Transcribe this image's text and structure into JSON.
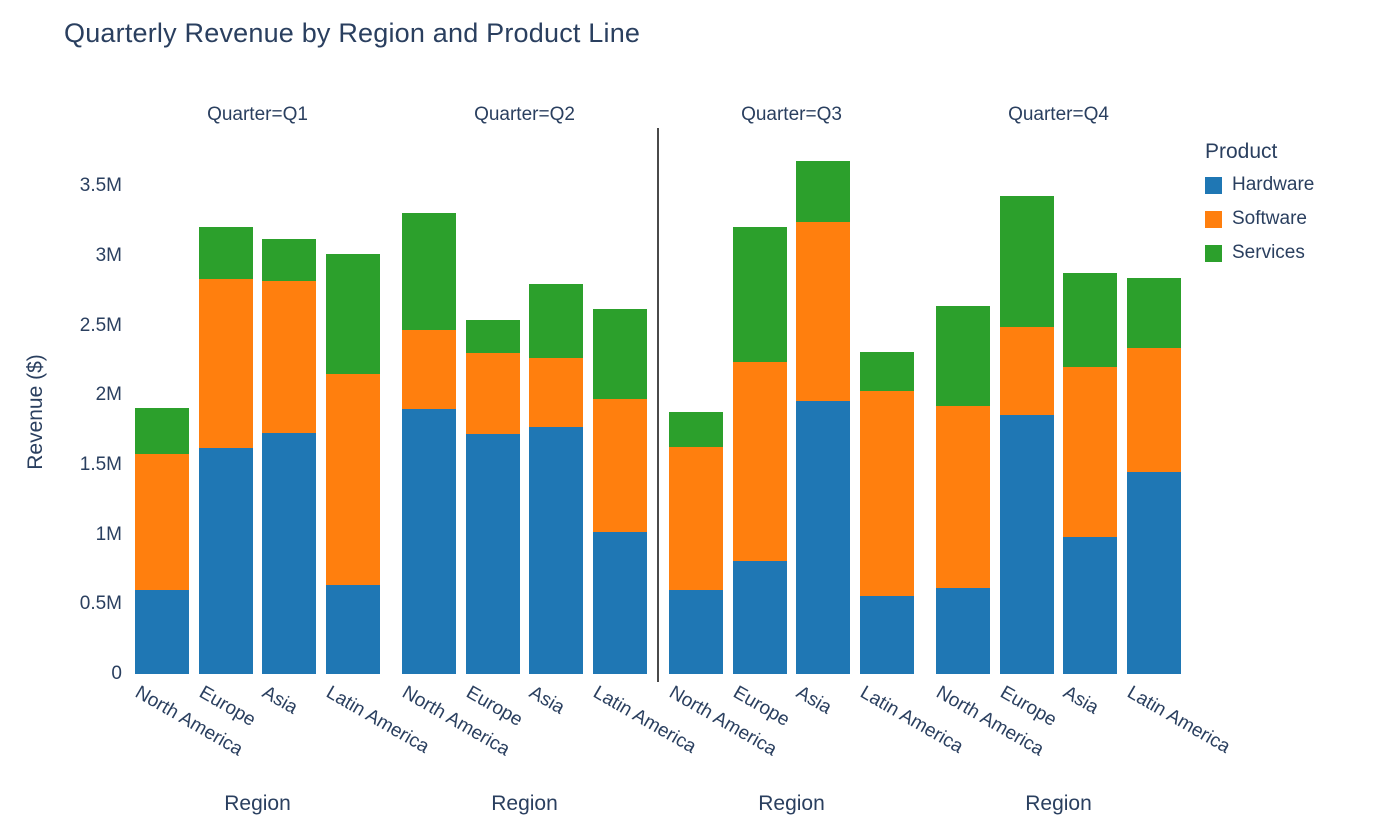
{
  "chart_data": {
    "type": "bar",
    "stacked": true,
    "title": "Quarterly Revenue by Region and Product Line",
    "ylabel": "Revenue ($)",
    "xlabel": "Region",
    "ylim": [
      0,
      3.5
    ],
    "yticks": [
      0,
      0.5,
      1,
      1.5,
      2,
      2.5,
      3,
      3.5
    ],
    "ytick_labels": [
      "0",
      "0.5M",
      "1M",
      "1.5M",
      "2M",
      "2.5M",
      "3M",
      "3.5M"
    ],
    "categories": [
      "North America",
      "Europe",
      "Asia",
      "Latin America"
    ],
    "unit": "millions of dollars",
    "legend": {
      "title": "Product",
      "entries": [
        {
          "label": "Hardware",
          "color": "#1f77b4"
        },
        {
          "label": "Software",
          "color": "#ff7f0e"
        },
        {
          "label": "Services",
          "color": "#2ca02c"
        }
      ]
    },
    "facets": [
      {
        "label": "Quarter=Q1",
        "series": [
          {
            "name": "Hardware",
            "values": [
              0.6,
              1.62,
              1.73,
              0.64
            ]
          },
          {
            "name": "Software",
            "values": [
              0.98,
              1.21,
              1.09,
              1.51
            ]
          },
          {
            "name": "Services",
            "values": [
              0.33,
              0.38,
              0.3,
              0.86
            ]
          }
        ]
      },
      {
        "label": "Quarter=Q2",
        "series": [
          {
            "name": "Hardware",
            "values": [
              1.9,
              1.72,
              1.77,
              1.02
            ]
          },
          {
            "name": "Software",
            "values": [
              0.57,
              0.58,
              0.5,
              0.95
            ]
          },
          {
            "name": "Services",
            "values": [
              0.84,
              0.24,
              0.53,
              0.65
            ]
          }
        ]
      },
      {
        "label": "Quarter=Q3",
        "series": [
          {
            "name": "Hardware",
            "values": [
              0.6,
              0.81,
              1.96,
              0.56
            ]
          },
          {
            "name": "Software",
            "values": [
              1.03,
              1.43,
              1.28,
              1.47
            ]
          },
          {
            "name": "Services",
            "values": [
              0.25,
              0.97,
              0.44,
              0.28
            ]
          }
        ]
      },
      {
        "label": "Quarter=Q4",
        "series": [
          {
            "name": "Hardware",
            "values": [
              0.62,
              1.86,
              0.98,
              1.45
            ]
          },
          {
            "name": "Software",
            "values": [
              1.3,
              0.63,
              1.22,
              0.89
            ]
          },
          {
            "name": "Services",
            "values": [
              0.72,
              0.94,
              0.68,
              0.5
            ]
          }
        ]
      }
    ],
    "text_color": "#2a3f5f",
    "background_color": "#ffffff"
  }
}
